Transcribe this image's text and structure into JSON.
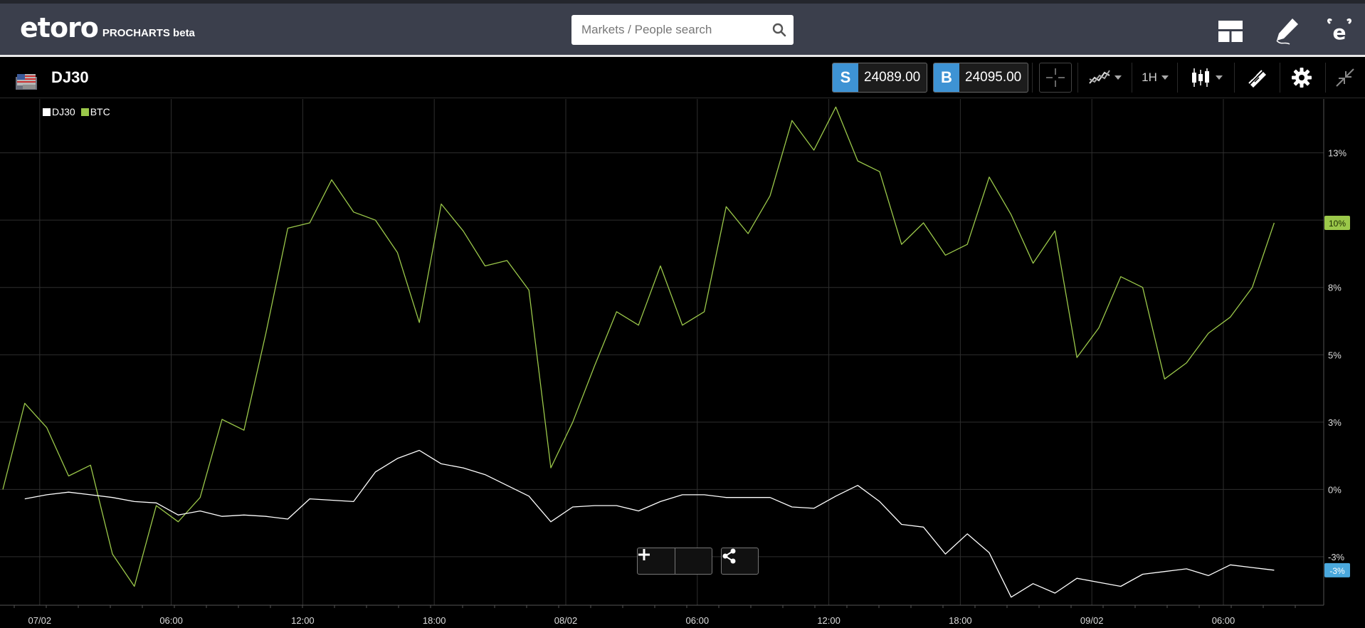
{
  "header": {
    "logo_text": "etoro",
    "product_label": "PROCHARTS beta",
    "search": {
      "placeholder": "Markets / People search"
    },
    "icons": [
      "layout-icon",
      "pencil-icon",
      "etoro-e-icon"
    ]
  },
  "toolbar": {
    "symbol": "DJ30",
    "sell": {
      "tag": "S",
      "value": "24089.00"
    },
    "buy": {
      "tag": "B",
      "value": "24095.00"
    },
    "timeframe": "1H",
    "icons": [
      "crosshair-icon",
      "compare-icon",
      "candles-icon",
      "drawing-icon",
      "gear-icon",
      "collapse-icon"
    ]
  },
  "colors": {
    "header_bg": "#3b3f4c",
    "btc_line": "#9bc84a",
    "dj30_line": "#ffffff",
    "sell_buy_tag": "#3e93d4",
    "grid": "#2e2e2e"
  },
  "chart_data": {
    "type": "line",
    "title": "",
    "legend": [
      "DJ30",
      "BTC"
    ],
    "legend_position": "top-left",
    "y_ticks": [
      "13%",
      "10%",
      "8%",
      "5%",
      "3%",
      "0%",
      "-3%"
    ],
    "y_tick_values": [
      12.5,
      10,
      7.5,
      5,
      2.5,
      0,
      -2.5
    ],
    "ylim": [
      -4.3,
      14.5
    ],
    "x_ticks": [
      "07/02",
      "06:00",
      "12:00",
      "18:00",
      "08/02",
      "06:00",
      "12:00",
      "18:00",
      "09/02",
      "06:00"
    ],
    "x_tick_index": [
      1,
      7,
      13,
      19,
      25,
      31,
      37,
      43,
      49,
      55
    ],
    "grid": true,
    "last_value_labels": {
      "BTC": "10%",
      "DJ30": "-3%"
    },
    "series": [
      {
        "name": "BTC",
        "color": "#9bc84a",
        "values": [
          0.0,
          3.2,
          2.3,
          0.5,
          0.9,
          -2.4,
          -3.6,
          -0.6,
          -1.2,
          -0.3,
          2.6,
          2.2,
          5.8,
          9.7,
          9.9,
          11.5,
          10.3,
          10.0,
          8.8,
          6.2,
          10.6,
          9.6,
          8.3,
          8.5,
          7.4,
          0.8,
          2.5,
          4.6,
          6.6,
          6.1,
          8.3,
          6.1,
          6.6,
          10.5,
          9.5,
          10.9,
          13.7,
          12.6,
          14.2,
          12.2,
          11.8,
          9.1,
          9.9,
          8.7,
          9.1,
          11.6,
          10.2,
          8.4,
          9.6,
          4.9,
          6.0,
          7.9,
          7.5,
          4.1,
          4.7,
          5.8,
          6.4,
          7.5,
          9.9
        ]
      },
      {
        "name": "DJ30",
        "color": "#ffffff",
        "values": [
          -0.35,
          -0.2,
          -0.1,
          -0.2,
          -0.3,
          -0.45,
          -0.5,
          -0.95,
          -0.8,
          -1.0,
          -0.95,
          -1.0,
          -1.1,
          -0.35,
          -0.4,
          -0.45,
          0.65,
          1.15,
          1.45,
          0.95,
          0.8,
          0.55,
          0.15,
          -0.25,
          -1.2,
          -0.65,
          -0.6,
          -0.6,
          -0.8,
          -0.45,
          -0.2,
          -0.2,
          -0.3,
          -0.3,
          -0.3,
          -0.65,
          -0.7,
          -0.25,
          0.15,
          -0.45,
          -1.3,
          -1.4,
          -2.4,
          -1.65,
          -2.35,
          -4.0,
          -3.5,
          -3.85,
          -3.3,
          -3.45,
          -3.6,
          -3.15,
          -3.05,
          -2.95,
          -3.2,
          -2.8,
          -2.9,
          -3.0
        ]
      }
    ]
  }
}
